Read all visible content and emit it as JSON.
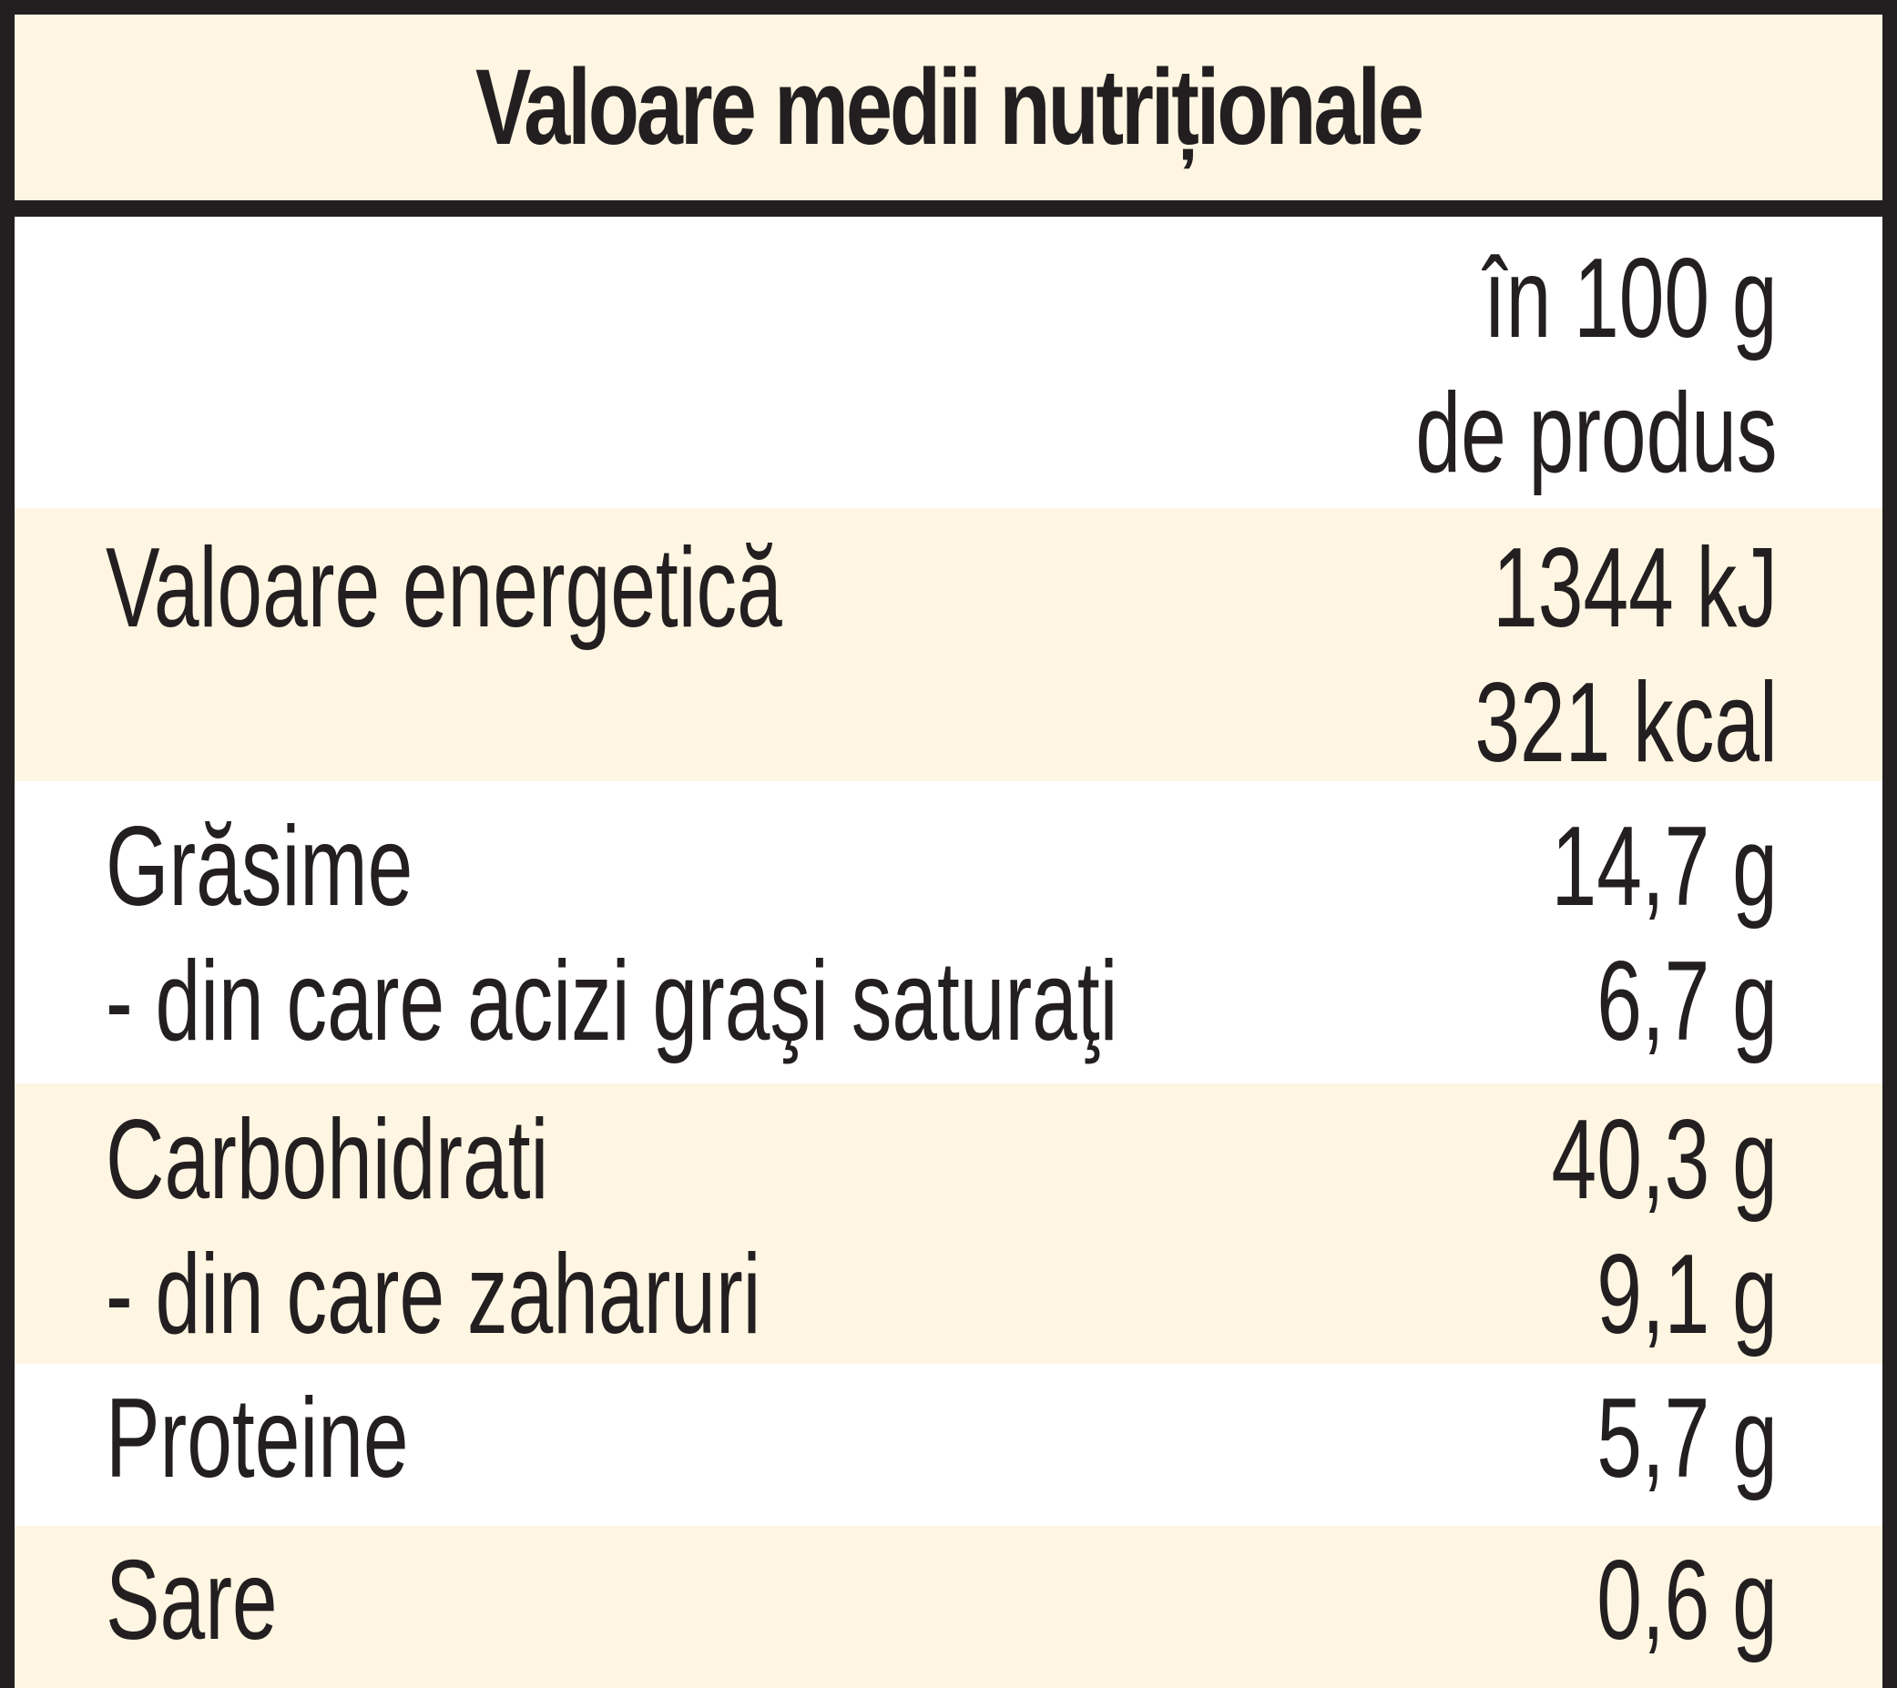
{
  "table": {
    "title": "Valoare medii nutriționale",
    "column_header": [
      "în 100 g",
      "de produs"
    ],
    "rows": [
      {
        "labels": [
          "Valoare energetică"
        ],
        "values": [
          "1344 kJ",
          "321 kcal"
        ]
      },
      {
        "labels": [
          "Grăsime",
          "- din care acizi graşi saturaţi"
        ],
        "values": [
          "14,7 g",
          "6,7 g"
        ]
      },
      {
        "labels": [
          "Carbohidrati",
          "- din care zaharuri"
        ],
        "values": [
          "40,3 g",
          "9,1 g"
        ]
      },
      {
        "labels": [
          "Proteine"
        ],
        "values": [
          "5,7 g"
        ]
      },
      {
        "labels": [
          "Sare"
        ],
        "values": [
          "0,6 g"
        ]
      }
    ]
  },
  "colors": {
    "border": "#231f20",
    "text": "#231f20",
    "shaded_row": "#fef6e2",
    "plain_row": "#ffffff"
  }
}
